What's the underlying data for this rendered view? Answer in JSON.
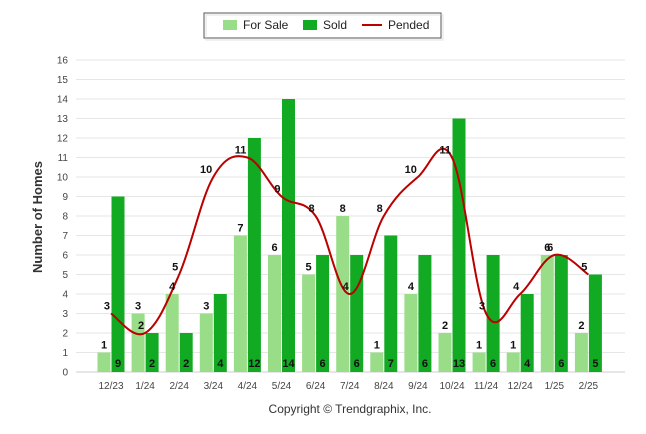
{
  "chart_data": {
    "type": "bar",
    "title": "",
    "xlabel": "",
    "ylabel": "Number of Homes",
    "ylim": [
      0,
      16
    ],
    "yticks": [
      0,
      1,
      2,
      3,
      4,
      5,
      6,
      7,
      8,
      9,
      10,
      11,
      12,
      13,
      14,
      15,
      16
    ],
    "grid": true,
    "legend_position": "top-center",
    "categories": [
      "12/23",
      "1/24",
      "2/24",
      "3/24",
      "4/24",
      "5/24",
      "6/24",
      "7/24",
      "8/24",
      "9/24",
      "10/24",
      "11/24",
      "12/24",
      "1/25",
      "2/25"
    ],
    "series": [
      {
        "name": "For Sale",
        "type": "bar",
        "color": "#99dd88",
        "values": [
          1,
          3,
          4,
          3,
          7,
          6,
          5,
          8,
          1,
          4,
          2,
          1,
          1,
          6,
          2
        ]
      },
      {
        "name": "Sold",
        "type": "bar",
        "color": "#11aa22",
        "values": [
          9,
          2,
          2,
          4,
          12,
          14,
          6,
          6,
          7,
          6,
          13,
          6,
          4,
          6,
          5
        ]
      },
      {
        "name": "Pended",
        "type": "line",
        "color": "#bb0000",
        "values": [
          3,
          2,
          5,
          10,
          11,
          9,
          8,
          4,
          8,
          10,
          11,
          3,
          4,
          6,
          5
        ]
      }
    ]
  },
  "footer": {
    "copyright": "Copyright © Trendgraphix, Inc."
  }
}
